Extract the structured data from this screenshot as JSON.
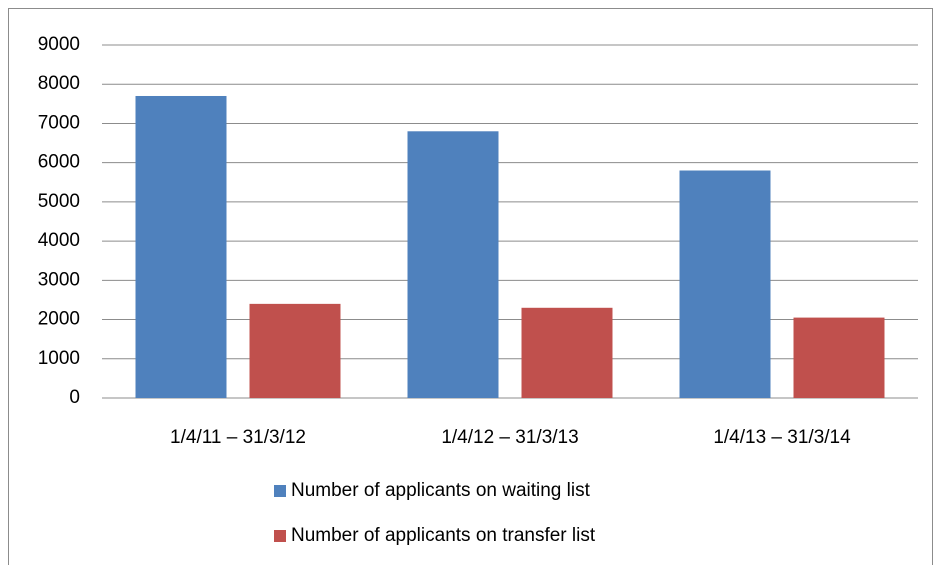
{
  "chart_data": {
    "type": "bar",
    "categories": [
      "1/4/11 – 31/3/12",
      "1/4/12 – 31/3/13",
      "1/4/13 – 31/3/14"
    ],
    "series": [
      {
        "name": "Number of applicants on waiting list",
        "color": "#4f81bd",
        "values": [
          7700,
          6800,
          5800
        ]
      },
      {
        "name": "Number of applicants on transfer list",
        "color": "#c0504d",
        "values": [
          2400,
          2300,
          2050
        ]
      }
    ],
    "ylim": [
      0,
      9000
    ],
    "yticks": [
      0,
      1000,
      2000,
      3000,
      4000,
      5000,
      6000,
      7000,
      8000,
      9000
    ],
    "grid": true,
    "legend": "bottom"
  }
}
